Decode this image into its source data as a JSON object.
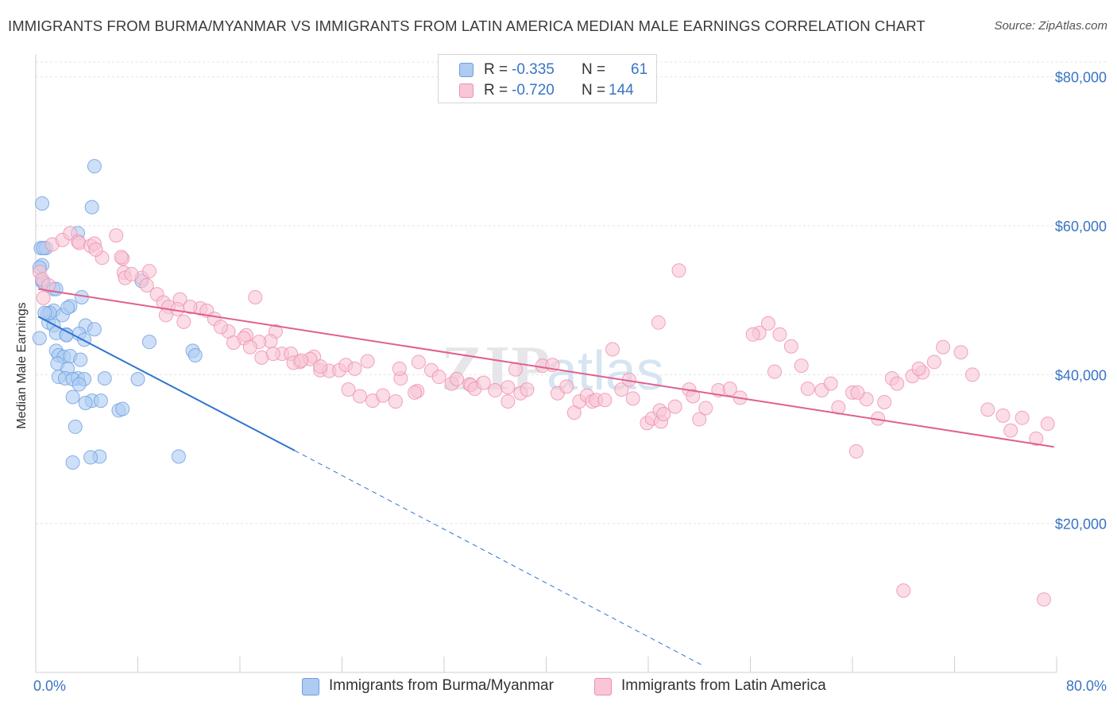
{
  "title": "IMMIGRANTS FROM BURMA/MYANMAR VS IMMIGRANTS FROM LATIN AMERICA MEDIAN MALE EARNINGS CORRELATION CHART",
  "source": "Source: ZipAtlas.com",
  "legend": {
    "r_label": "R =",
    "n_label": "N =",
    "series": [
      {
        "name": "Immigrants from Burma/Myanmar",
        "r": "-0.335",
        "n": "61",
        "fill": "#aecbf2",
        "stroke": "#6d9de0"
      },
      {
        "name": "Immigrants from Latin America",
        "r": "-0.720",
        "n": "144",
        "fill": "#f9c6d6",
        "stroke": "#ee8fae"
      }
    ]
  },
  "chart_data": {
    "type": "scatter",
    "title": "IMMIGRANTS FROM BURMA/MYANMAR VS IMMIGRANTS FROM LATIN AMERICA MEDIAN MALE EARNINGS CORRELATION CHART",
    "xlabel": "",
    "ylabel": "Median Male Earnings",
    "xlim": [
      0,
      80
    ],
    "ylim": [
      0,
      82000
    ],
    "x_tick_labels": [
      "0.0%",
      "80.0%"
    ],
    "y_ticks": [
      20000,
      40000,
      60000,
      80000
    ],
    "y_tick_labels": [
      "$20,000",
      "$40,000",
      "$60,000",
      "$80,000"
    ],
    "grid": true,
    "legend_position": "top-center",
    "series": [
      {
        "name": "Immigrants from Burma/Myanmar",
        "color": "#6d9de0",
        "trend": {
          "x0": 0.2,
          "y0": 47800,
          "x1": 20.3,
          "y1": 29800,
          "dashed_to_x": 52.2,
          "dashed_to_y": 1000
        },
        "points": [
          [
            0.5,
            63000
          ],
          [
            0.4,
            57000
          ],
          [
            0.8,
            57000
          ],
          [
            4.6,
            68000
          ],
          [
            4.4,
            62500
          ],
          [
            0.5,
            54700
          ],
          [
            0.3,
            54400
          ],
          [
            0.5,
            52500
          ],
          [
            0.6,
            52400
          ],
          [
            1.4,
            51500
          ],
          [
            1.6,
            51500
          ],
          [
            3.6,
            50400
          ],
          [
            2.7,
            49200
          ],
          [
            1.4,
            48600
          ],
          [
            0.9,
            48200
          ],
          [
            2.1,
            48000
          ],
          [
            1.0,
            47000
          ],
          [
            1.4,
            46600
          ],
          [
            3.9,
            46600
          ],
          [
            4.6,
            46100
          ],
          [
            1.6,
            45600
          ],
          [
            3.4,
            45500
          ],
          [
            2.4,
            45400
          ],
          [
            2.4,
            45300
          ],
          [
            3.8,
            44700
          ],
          [
            0.3,
            44900
          ],
          [
            8.9,
            44400
          ],
          [
            1.6,
            43200
          ],
          [
            12.3,
            43200
          ],
          [
            1.8,
            42600
          ],
          [
            2.2,
            42400
          ],
          [
            2.7,
            42500
          ],
          [
            12.5,
            42600
          ],
          [
            3.5,
            42000
          ],
          [
            1.7,
            41500
          ],
          [
            2.5,
            40800
          ],
          [
            1.8,
            39700
          ],
          [
            2.3,
            39500
          ],
          [
            3.3,
            39500
          ],
          [
            5.4,
            39500
          ],
          [
            2.9,
            39400
          ],
          [
            3.8,
            39400
          ],
          [
            3.4,
            38700
          ],
          [
            8.0,
            39400
          ],
          [
            2.9,
            37000
          ],
          [
            4.4,
            36500
          ],
          [
            3.9,
            36200
          ],
          [
            5.1,
            36500
          ],
          [
            6.5,
            35200
          ],
          [
            6.8,
            35400
          ],
          [
            3.1,
            33000
          ],
          [
            5.0,
            29000
          ],
          [
            4.3,
            28900
          ],
          [
            11.2,
            29000
          ],
          [
            2.9,
            28200
          ],
          [
            8.3,
            52600
          ],
          [
            3.3,
            59000
          ],
          [
            0.6,
            57000
          ],
          [
            1.1,
            48300
          ],
          [
            0.7,
            48300
          ],
          [
            2.5,
            49000
          ]
        ]
      },
      {
        "name": "Immigrants from Latin America",
        "color": "#ee8fae",
        "trend": {
          "x0": 0.2,
          "y0": 51500,
          "x1": 79.8,
          "y1": 30300
        },
        "points": [
          [
            0.3,
            53800
          ],
          [
            0.5,
            52800
          ],
          [
            1.3,
            57500
          ],
          [
            2.1,
            58100
          ],
          [
            2.7,
            59000
          ],
          [
            3.3,
            57900
          ],
          [
            3.4,
            57700
          ],
          [
            4.3,
            57300
          ],
          [
            4.6,
            57600
          ],
          [
            6.3,
            58700
          ],
          [
            5.2,
            55700
          ],
          [
            6.8,
            55600
          ],
          [
            6.7,
            55800
          ],
          [
            4.7,
            56800
          ],
          [
            6.9,
            53700
          ],
          [
            7.0,
            53000
          ],
          [
            8.3,
            53000
          ],
          [
            8.9,
            53900
          ],
          [
            7.5,
            53500
          ],
          [
            8.7,
            52000
          ],
          [
            1.0,
            52000
          ],
          [
            0.6,
            50300
          ],
          [
            9.5,
            50800
          ],
          [
            10.0,
            49700
          ],
          [
            11.3,
            50100
          ],
          [
            10.4,
            49100
          ],
          [
            11.1,
            48800
          ],
          [
            12.9,
            48900
          ],
          [
            12.1,
            49100
          ],
          [
            10.2,
            48000
          ],
          [
            13.4,
            48600
          ],
          [
            11.6,
            47100
          ],
          [
            14.0,
            47500
          ],
          [
            15.1,
            45800
          ],
          [
            14.5,
            46400
          ],
          [
            17.2,
            50400
          ],
          [
            16.5,
            45300
          ],
          [
            18.8,
            45800
          ],
          [
            18.4,
            44500
          ],
          [
            17.5,
            44400
          ],
          [
            19.3,
            42800
          ],
          [
            17.7,
            42300
          ],
          [
            16.3,
            44900
          ],
          [
            16.8,
            43700
          ],
          [
            15.5,
            44300
          ],
          [
            18.6,
            42800
          ],
          [
            20.0,
            42800
          ],
          [
            20.7,
            41700
          ],
          [
            20.2,
            41600
          ],
          [
            21.8,
            42400
          ],
          [
            21.5,
            42100
          ],
          [
            20.8,
            41900
          ],
          [
            22.3,
            40600
          ],
          [
            23.0,
            40500
          ],
          [
            22.3,
            41100
          ],
          [
            23.8,
            40600
          ],
          [
            24.3,
            41300
          ],
          [
            25.0,
            40800
          ],
          [
            26.0,
            41800
          ],
          [
            24.5,
            38000
          ],
          [
            25.4,
            37100
          ],
          [
            26.4,
            36500
          ],
          [
            27.2,
            37200
          ],
          [
            28.2,
            36400
          ],
          [
            29.9,
            37800
          ],
          [
            29.7,
            37600
          ],
          [
            28.6,
            39500
          ],
          [
            28.5,
            40800
          ],
          [
            30.0,
            41700
          ],
          [
            31.0,
            40600
          ],
          [
            31.6,
            39700
          ],
          [
            32.6,
            38800
          ],
          [
            33.0,
            39400
          ],
          [
            34.0,
            38700
          ],
          [
            34.1,
            38600
          ],
          [
            34.4,
            38100
          ],
          [
            35.1,
            38900
          ],
          [
            36.0,
            37900
          ],
          [
            37.0,
            38300
          ],
          [
            37.6,
            40700
          ],
          [
            38.0,
            37500
          ],
          [
            37.0,
            36400
          ],
          [
            38.5,
            38000
          ],
          [
            39.7,
            41200
          ],
          [
            40.5,
            41300
          ],
          [
            40.9,
            37500
          ],
          [
            41.6,
            38400
          ],
          [
            42.2,
            34900
          ],
          [
            42.6,
            36400
          ],
          [
            43.2,
            37200
          ],
          [
            43.6,
            36400
          ],
          [
            43.9,
            36600
          ],
          [
            44.6,
            36600
          ],
          [
            45.2,
            43400
          ],
          [
            45.9,
            38000
          ],
          [
            46.5,
            39300
          ],
          [
            46.8,
            36800
          ],
          [
            47.9,
            33500
          ],
          [
            48.3,
            34100
          ],
          [
            49.0,
            33700
          ],
          [
            48.9,
            35200
          ],
          [
            49.2,
            34700
          ],
          [
            50.1,
            35700
          ],
          [
            51.2,
            38000
          ],
          [
            51.5,
            37100
          ],
          [
            52.0,
            34000
          ],
          [
            52.5,
            35500
          ],
          [
            53.5,
            37900
          ],
          [
            54.4,
            38100
          ],
          [
            55.2,
            36900
          ],
          [
            56.7,
            45600
          ],
          [
            57.4,
            46900
          ],
          [
            58.3,
            45400
          ],
          [
            59.2,
            43800
          ],
          [
            60.5,
            38100
          ],
          [
            61.6,
            37900
          ],
          [
            62.3,
            38800
          ],
          [
            62.9,
            35600
          ],
          [
            64.0,
            37600
          ],
          [
            65.1,
            36700
          ],
          [
            64.4,
            37600
          ],
          [
            66.5,
            36300
          ],
          [
            66.0,
            34100
          ],
          [
            67.1,
            39500
          ],
          [
            67.5,
            38800
          ],
          [
            68.7,
            39800
          ],
          [
            69.5,
            40300
          ],
          [
            69.2,
            40800
          ],
          [
            70.4,
            41700
          ],
          [
            71.1,
            43700
          ],
          [
            72.5,
            43000
          ],
          [
            73.4,
            40000
          ],
          [
            74.6,
            35300
          ],
          [
            75.8,
            34500
          ],
          [
            76.4,
            32500
          ],
          [
            77.3,
            34200
          ],
          [
            78.4,
            31400
          ],
          [
            79.3,
            33400
          ],
          [
            50.4,
            54000
          ],
          [
            48.8,
            47000
          ],
          [
            56.2,
            45400
          ],
          [
            57.9,
            40400
          ],
          [
            60.0,
            41200
          ],
          [
            64.3,
            29700
          ],
          [
            68.0,
            11000
          ],
          [
            79.0,
            9800
          ]
        ]
      }
    ]
  }
}
